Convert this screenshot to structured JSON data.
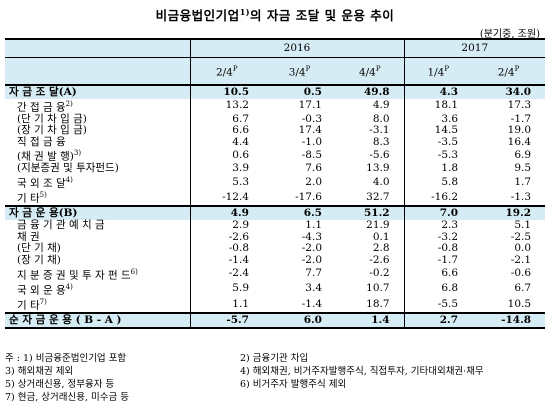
{
  "title": "비금융법인기업",
  "title_sup": "1)",
  "title_rest": "의 자금 조달 및 운용 추이",
  "unit": "(분기중, 조원)",
  "years": [
    "2016",
    "2017"
  ],
  "quarters": [
    "2/4",
    "3/4",
    "4/4",
    "1/4",
    "2/4"
  ],
  "quarter_sup": "P",
  "rows": [
    {
      "label": "자 금 조 달(A)",
      "sup": "",
      "type": "sec",
      "values": [
        "10.5",
        "0.5",
        "49.8",
        "4.3",
        "34.0"
      ]
    },
    {
      "label": "간 접 금 융",
      "sup": "2)",
      "type": "l1",
      "values": [
        "13.2",
        "17.1",
        "4.9",
        "18.1",
        "17.3"
      ]
    },
    {
      "label": "(단 기 차 입 금)",
      "sup": "",
      "type": "l2",
      "values": [
        "6.7",
        "-0.3",
        "8.0",
        "3.6",
        "-1.7"
      ]
    },
    {
      "label": "(장 기 차 입 금)",
      "sup": "",
      "type": "l2",
      "values": [
        "6.6",
        "17.4",
        "-3.1",
        "14.5",
        "19.0"
      ]
    },
    {
      "label": "직 접 금 융",
      "sup": "",
      "type": "l1",
      "values": [
        "4.4",
        "-1.0",
        "8.3",
        "-3.5",
        "16.4"
      ]
    },
    {
      "label": "(채 권 발 행)",
      "sup": "3)",
      "type": "l2",
      "values": [
        "0.6",
        "-8.5",
        "-5.6",
        "-5.3",
        "6.9"
      ]
    },
    {
      "label": "(지분증권 및 투자펀드)",
      "sup": "",
      "type": "l2",
      "values": [
        "3.9",
        "7.6",
        "13.9",
        "1.8",
        "9.5"
      ]
    },
    {
      "label": "국 외 조 달",
      "sup": "4)",
      "type": "l1",
      "values": [
        "5.3",
        "2.0",
        "4.0",
        "5.8",
        "1.7"
      ]
    },
    {
      "label": "기 타",
      "sup": "5)",
      "type": "l1",
      "values": [
        "-12.4",
        "-17.6",
        "32.7",
        "-16.2",
        "-1.3"
      ]
    },
    {
      "label": "자 금 운 용(B)",
      "sup": "",
      "type": "sec",
      "values": [
        "4.9",
        "6.5",
        "51.2",
        "7.0",
        "19.2"
      ]
    },
    {
      "label": "금 융 기 관 예 치 금",
      "sup": "",
      "type": "l1",
      "values": [
        "2.9",
        "1.1",
        "21.9",
        "2.3",
        "5.1"
      ]
    },
    {
      "label": "채 권",
      "sup": "",
      "type": "l1",
      "values": [
        "-2.6",
        "-4.3",
        "0.1",
        "-3.2",
        "-2.5"
      ]
    },
    {
      "label": "(단 기 채)",
      "sup": "",
      "type": "l2",
      "values": [
        "-0.8",
        "-2.0",
        "2.8",
        "-0.8",
        "0.0"
      ]
    },
    {
      "label": "(장 기 채)",
      "sup": "",
      "type": "l2",
      "values": [
        "-1.4",
        "-2.0",
        "-2.6",
        "-1.7",
        "-2.1"
      ]
    },
    {
      "label": "지 분 증 권 및 투 자 펀 드",
      "sup": "6)",
      "type": "l1",
      "values": [
        "-2.4",
        "7.7",
        "-0.2",
        "6.6",
        "-0.6"
      ]
    },
    {
      "label": "국 외 운 용",
      "sup": "4)",
      "type": "l1",
      "values": [
        "5.9",
        "3.4",
        "10.7",
        "6.8",
        "6.7"
      ]
    },
    {
      "label": "기 타",
      "sup": "7)",
      "type": "l1",
      "values": [
        "1.1",
        "-1.4",
        "18.7",
        "-5.5",
        "10.5"
      ]
    },
    {
      "label": "순 자 금 운 용 ( B - A )",
      "sup": "",
      "type": "sec",
      "values": [
        "-5.7",
        "6.0",
        "1.4",
        "2.7",
        "-14.8"
      ]
    }
  ],
  "notes": [
    [
      "주 : 1) 비금융준법인기업 포함",
      "2) 금융기관 차입"
    ],
    [
      "3) 해외채권 제외",
      "4) 해외채권, 비거주자발행주식, 직접투자, 기타대외채권·채무"
    ],
    [
      "5) 상거래신용, 정부융자 등",
      "6) 비거주자 발행주식 제외"
    ],
    [
      "7) 현금, 상거래신용, 미수금 등",
      ""
    ]
  ]
}
